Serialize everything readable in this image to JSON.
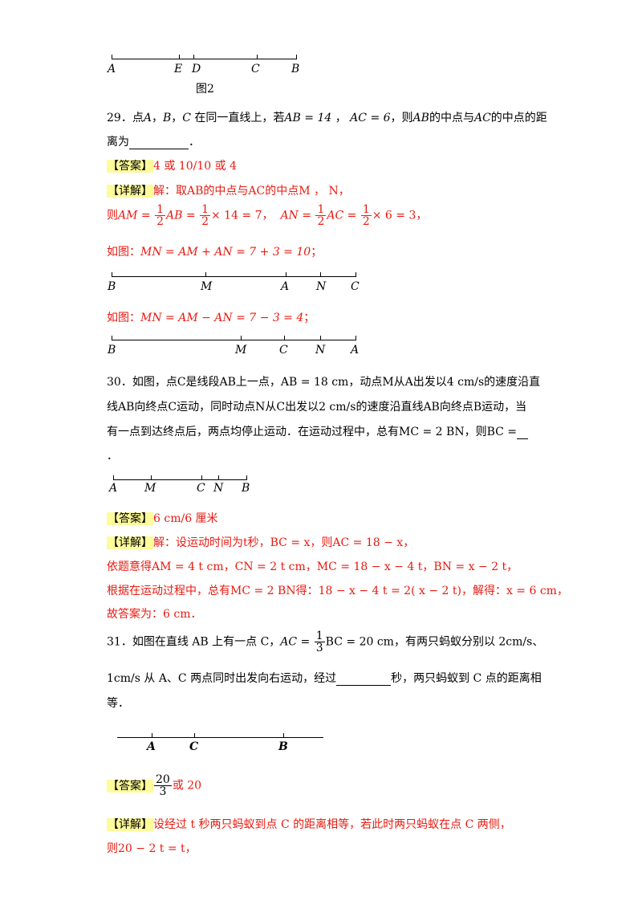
{
  "fig2": {
    "points": [
      "A",
      "E",
      "D",
      "C",
      "B"
    ],
    "caption": "图2"
  },
  "q29": {
    "number": "29．",
    "text_a": "点",
    "text_b": "，",
    "text_c": "在同一直线上，若",
    "cond1": "AB = 14",
    "cond2": "AC = 6",
    "text_d": "，则",
    "text_e": "的中点与",
    "text_f": "的中点的距",
    "line2": "离为",
    "line2_end": "．",
    "answer_tag": "【答案】",
    "answer": "4 或 10/10 或 4",
    "detail_tag": "【详解】",
    "d1": "解：取AB的中点与AC的中点M ， N，",
    "d2_prefix": "则",
    "d2_am": "AM =",
    "d2_ab": "AB =",
    "d2_am_val": "× 14 = 7，",
    "d2_an": "AN =",
    "d2_ac": "AC =",
    "d2_an_val": "× 6 = 3，",
    "half_num": "1",
    "half_den": "2",
    "d3_prefix": "如图：",
    "d3": "MN = AM + AN = 7 + 3 = 10",
    "d3_end": "；",
    "fig_a": [
      "B",
      "M",
      "A",
      "N",
      "C"
    ],
    "d4_prefix": "如图：",
    "d4": "MN = AM − AN = 7 − 3 = 4",
    "d4_end": "；",
    "fig_b": [
      "B",
      "M",
      "C",
      "N",
      "A"
    ]
  },
  "q30": {
    "line1": "30．如图，点C是线段AB上一点，AB = 18 cm，动点M从A出发以4 cm/s的速度沿直",
    "line2": "线AB向终点C运动，同时动点N从C出发以2 cm/s的速度沿直线AB向终点B运动，当",
    "line3": "有一点到达终点后，两点均停止运动．在运动过程中，总有MC = 2 BN，则BC =",
    "line4": "．",
    "fig": [
      "A",
      "M",
      "C",
      "N",
      "B"
    ],
    "answer_tag": "【答案】",
    "answer": "6 cm/6 厘米",
    "detail_tag": "【详解】",
    "d1": "解：设运动时间为t秒，BC = x，则AC = 18 − x，",
    "d2": "依题意得AM = 4 t cm，CN = 2 t cm，MC = 18 − x − 4 t，BN = x − 2 t，",
    "d3": "根据在运动过程中，总有MC = 2 BN得：18 − x − 4 t = 2( x − 2 t)，解得：x = 6 cm，",
    "d4": "故答案为：6 cm．"
  },
  "q31": {
    "line1_a": "31．如图在直线 AB 上有一点 C，",
    "line1_ac": "AC =",
    "third_num": "1",
    "third_den": "3",
    "line1_b": "BC = 20 cm，有两只蚂蚁分别以 2cm/s、",
    "line2_a": "1cm/s 从 A、C 两点同时出发向右运动，经过",
    "line2_b": "秒，两只蚂蚁到 C 点的距离相",
    "line3": "等．",
    "fig": [
      "A",
      "C",
      "B"
    ],
    "answer_tag": "【答案】",
    "ans_num": "20",
    "ans_den": "3",
    "ans_rest": "或 20",
    "detail_tag": "【详解】",
    "d1": "设经过 t 秒两只蚂蚁到点 C 的距离相等，若此时两只蚂蚁在点 C 两侧，",
    "d2": "则20 − 2 t = t，"
  }
}
